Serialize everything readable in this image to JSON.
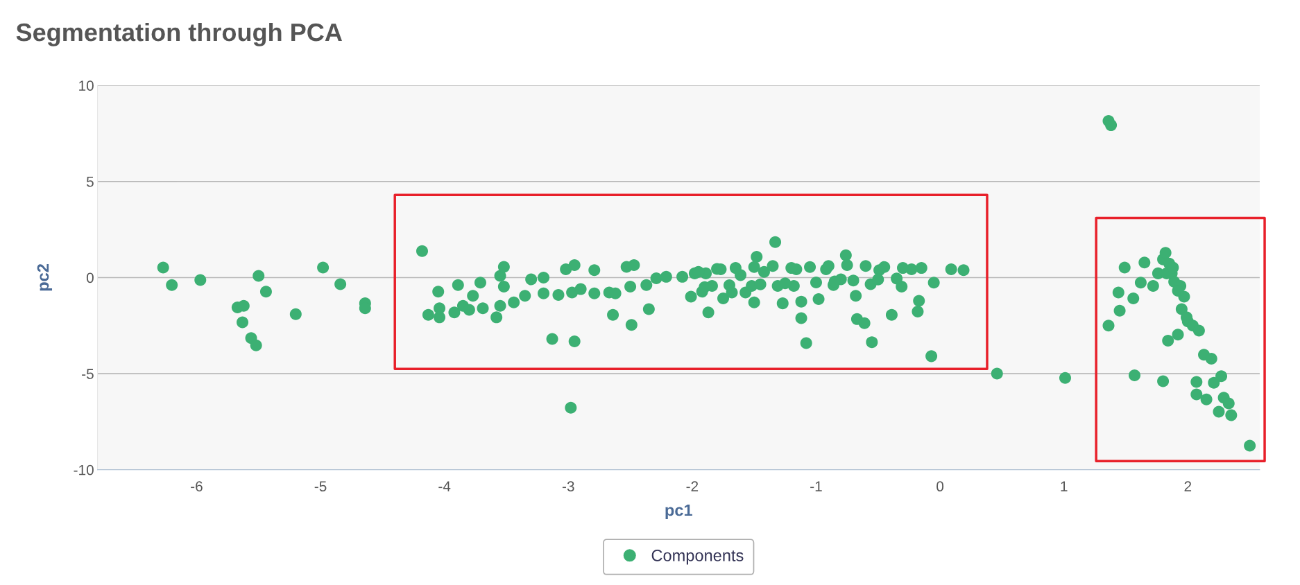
{
  "chart_data": {
    "type": "scatter",
    "title": "Segmentation through PCA",
    "xlabel": "pc1",
    "ylabel": "pc2",
    "xlim": [
      -6.8,
      2.58
    ],
    "xticks": [
      -6,
      -5,
      -4,
      -3,
      -2,
      -1,
      0,
      1,
      2
    ],
    "ylim": [
      -10,
      10
    ],
    "yticks": [
      -10,
      -5,
      0,
      5,
      10
    ],
    "grid": "y",
    "legend": "bottom",
    "marker": "circle",
    "series": [
      {
        "name": "Components",
        "color": "#3cb073",
        "x": [
          -6.27,
          -6.2,
          -5.97,
          -5.67,
          -5.62,
          -5.63,
          -5.56,
          -5.52,
          -5.5,
          -5.44,
          -5.2,
          -4.98,
          -4.84,
          -4.64,
          -4.64,
          -4.18,
          -4.13,
          -4.05,
          -4.04,
          -4.04,
          -3.92,
          -3.89,
          -3.85,
          -3.8,
          -3.77,
          -3.71,
          -3.69,
          -3.58,
          -3.55,
          -3.52,
          -3.52,
          -3.55,
          -3.44,
          -3.35,
          -3.3,
          -3.2,
          -3.2,
          -3.13,
          -3.08,
          -3.02,
          -2.95,
          -2.95,
          -2.97,
          -2.9,
          -2.98,
          -2.79,
          -2.79,
          -2.67,
          -2.64,
          -2.62,
          -2.53,
          -2.5,
          -2.49,
          -2.47,
          -2.37,
          -2.35,
          -2.29,
          -2.21,
          -2.08,
          -2.01,
          -1.98,
          -1.92,
          -1.89,
          -1.87,
          -1.84,
          -1.77,
          -1.75,
          -1.68,
          -1.61,
          -1.57,
          -1.52,
          -1.5,
          -1.48,
          -1.42,
          -1.33,
          -1.31,
          -1.27,
          -1.18,
          -1.16,
          -1.12,
          -1.12,
          -1.08,
          -0.98,
          -0.92,
          -0.86,
          -0.8,
          -0.76,
          -0.68,
          -0.67,
          -0.61,
          -0.55,
          -0.56,
          -0.49,
          -0.39,
          -0.31,
          -0.23,
          -0.18,
          -0.17,
          -0.05,
          -0.07,
          0.09,
          0.19,
          0.46,
          1.01,
          1.36,
          1.38,
          -1.95,
          -1.8,
          -1.65,
          -1.5,
          -1.35,
          -1.2,
          -1.05,
          -0.9,
          -0.75,
          -0.6,
          -0.45,
          -0.3,
          -0.15,
          -1.9,
          -1.7,
          -1.45,
          -1.25,
          -1.0,
          -0.85,
          -0.7,
          -0.5,
          -0.35,
          1.36,
          1.44,
          1.45,
          1.49,
          1.57,
          1.56,
          1.62,
          1.65,
          1.72,
          1.76,
          1.8,
          1.82,
          1.8,
          1.84,
          1.87,
          1.89,
          1.92,
          1.94,
          1.97,
          2.0,
          2.04,
          2.09,
          2.07,
          2.13,
          2.15,
          2.19,
          2.21,
          2.25,
          2.27,
          2.29,
          2.33,
          2.35,
          2.5,
          1.83,
          1.85,
          1.88,
          1.92,
          1.95,
          1.99,
          2.07
        ],
        "values": [
          0.52,
          -0.39,
          -0.13,
          -1.55,
          -1.47,
          -2.33,
          -3.15,
          -3.53,
          0.09,
          -0.73,
          -1.9,
          0.52,
          -0.34,
          -1.34,
          -1.6,
          1.38,
          -1.94,
          -0.73,
          -2.07,
          -1.6,
          -1.81,
          -0.39,
          -1.47,
          -1.68,
          -0.95,
          -0.26,
          -1.6,
          -2.07,
          0.09,
          0.56,
          -0.47,
          -1.47,
          -1.29,
          -0.95,
          -0.09,
          0.0,
          -0.82,
          -3.19,
          -0.9,
          0.43,
          0.65,
          -3.32,
          -0.78,
          -0.6,
          -6.77,
          0.39,
          -0.82,
          -0.78,
          -1.94,
          -0.82,
          0.56,
          -0.47,
          -2.46,
          0.65,
          -0.39,
          -1.64,
          -0.04,
          0.04,
          0.04,
          -0.99,
          0.22,
          -0.73,
          0.22,
          -1.81,
          -0.43,
          0.43,
          -1.08,
          -0.78,
          0.13,
          -0.78,
          -0.43,
          -1.29,
          1.08,
          0.3,
          1.85,
          -0.43,
          -1.34,
          -0.43,
          0.43,
          -2.11,
          -1.25,
          -3.41,
          -1.12,
          0.43,
          -0.39,
          -0.09,
          1.16,
          -0.95,
          -2.16,
          -2.37,
          -3.36,
          -0.34,
          0.39,
          -1.94,
          -0.47,
          0.43,
          -1.77,
          -1.21,
          -0.26,
          -4.09,
          0.43,
          0.39,
          -5.0,
          -5.22,
          8.15,
          7.93,
          0.3,
          0.45,
          0.5,
          0.55,
          0.6,
          0.5,
          0.55,
          0.6,
          0.65,
          0.6,
          0.55,
          0.5,
          0.5,
          -0.5,
          -0.4,
          -0.35,
          -0.3,
          -0.25,
          -0.2,
          -0.15,
          -0.1,
          -0.05,
          -2.5,
          -0.78,
          -1.72,
          0.52,
          -5.09,
          -1.08,
          -0.26,
          0.78,
          -0.43,
          0.22,
          0.95,
          1.29,
          -5.39,
          -3.28,
          0.22,
          -0.22,
          -2.97,
          -0.43,
          -0.99,
          -2.28,
          -2.5,
          -2.76,
          -6.08,
          -4.01,
          -6.34,
          -4.22,
          -5.47,
          -6.98,
          -5.13,
          -6.25,
          -6.55,
          -7.16,
          -8.75,
          0.22,
          0.73,
          0.52,
          -0.69,
          -1.64,
          -2.07,
          -5.43
        ]
      }
    ]
  }
}
